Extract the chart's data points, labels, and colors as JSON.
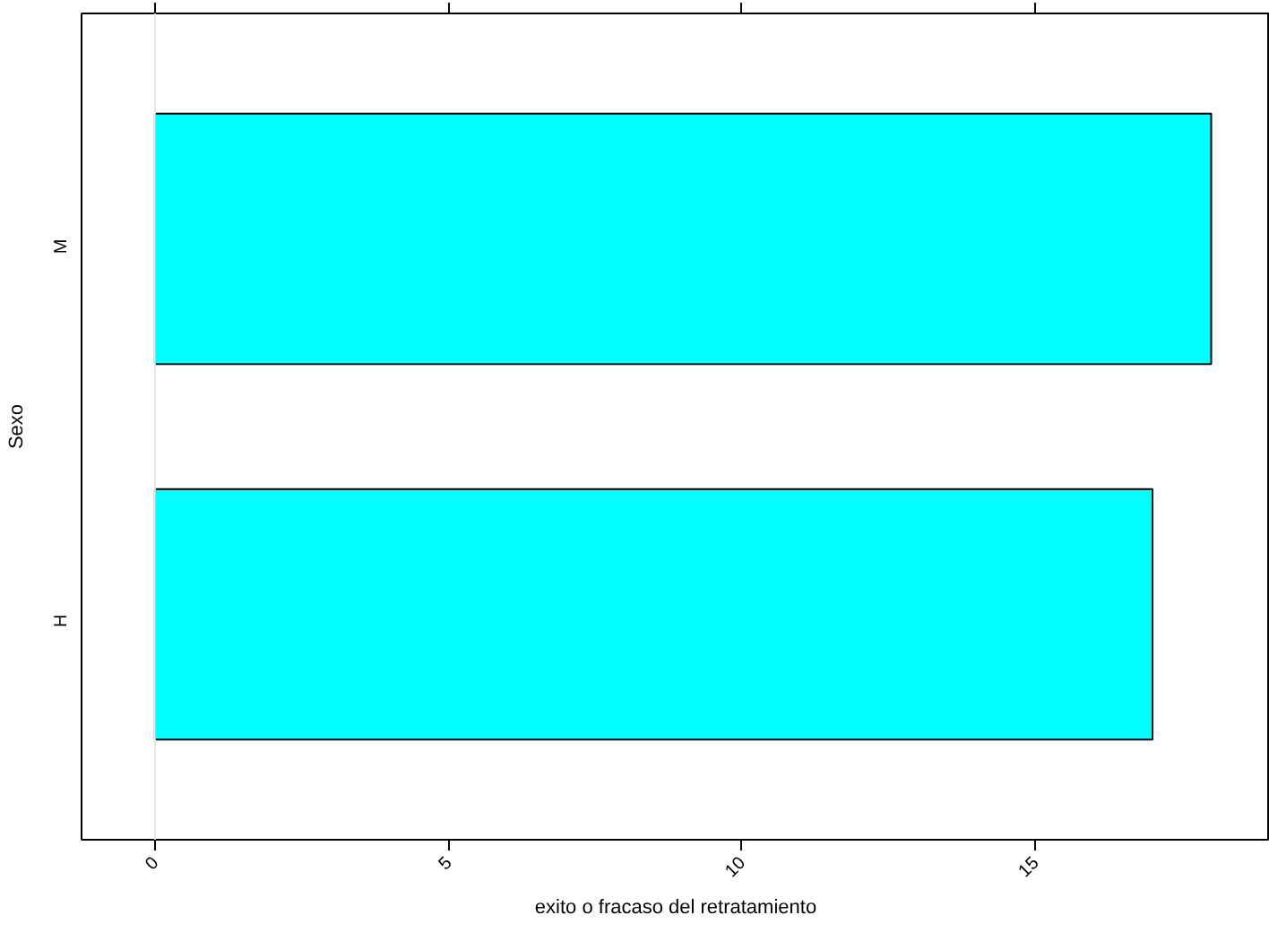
{
  "chart_data": {
    "type": "bar",
    "orientation": "horizontal",
    "xlabel": "exito o fracaso del retratamiento",
    "ylabel": "Sexo",
    "categories": [
      "M",
      "H"
    ],
    "series": [
      {
        "color": "#00ffff",
        "values": [
          18,
          17
        ]
      }
    ],
    "xlim": [
      -1.25,
      19
    ],
    "xticks": [
      0,
      5,
      10,
      15
    ],
    "ref_lines": [
      {
        "axis": "x",
        "value": 0,
        "label": null,
        "color": "#e6e6e6"
      }
    ],
    "grid": false
  }
}
